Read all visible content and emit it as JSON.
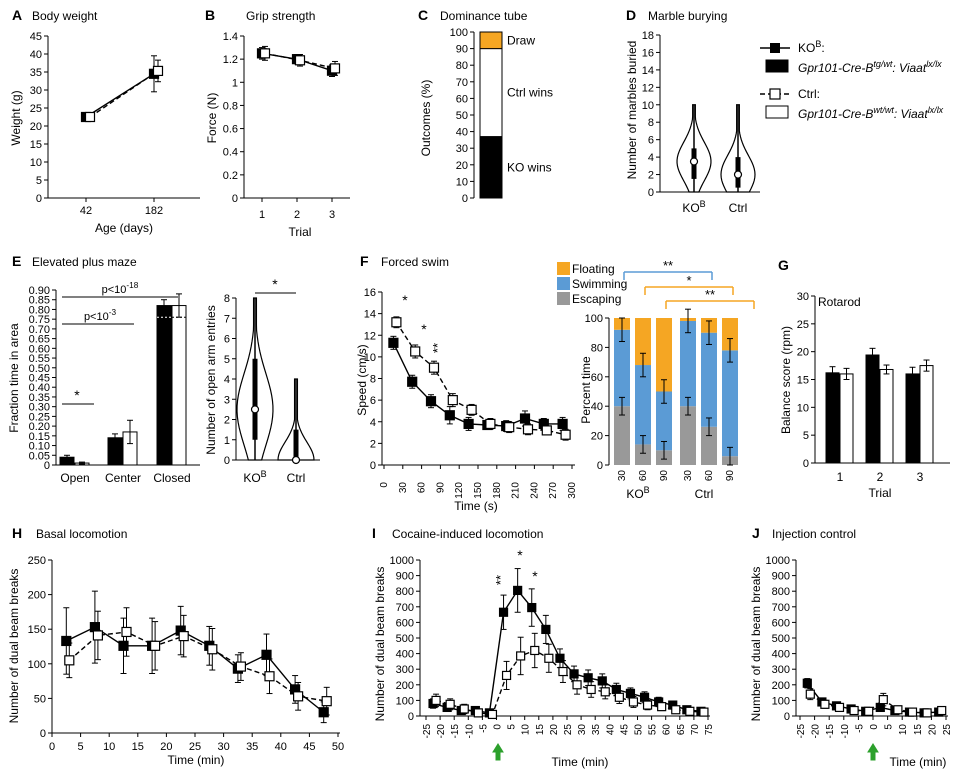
{
  "figure": {
    "legend": {
      "ko_label": "KO",
      "ko_sup": "B",
      "ko_suffix": ":",
      "ko_genotype": "Gpr101-Cre-B",
      "ko_geno_sup": "tg/wt",
      "ko_geno_mid": ": Viaat",
      "ko_geno_sup2": "lx/lx",
      "ctrl_label": "Ctrl:",
      "ctrl_genotype": "Gpr101-Cre-B",
      "ctrl_geno_sup": "wt/wt",
      "ctrl_geno_mid": ": Viaat",
      "ctrl_geno_sup2": "lx/lx"
    },
    "colors": {
      "ko": "#000000",
      "ctrl": "#ffffff",
      "floating": "#f5a623",
      "swimming": "#5b9bd5",
      "escaping": "#999999",
      "draw": "#f5a623",
      "arrow": "#2ca02c"
    }
  },
  "chart_data": [
    {
      "panel": "A",
      "type": "line",
      "title": "Body weight",
      "xlabel": "Age (days)",
      "ylabel": "Weight (g)",
      "x": [
        "42",
        "182"
      ],
      "ylim": [
        0,
        45
      ],
      "yticks": [
        0,
        5,
        10,
        15,
        20,
        25,
        30,
        35,
        40,
        45
      ],
      "series": [
        {
          "name": "KO",
          "values": [
            22.5,
            34.5
          ],
          "err": [
            1.0,
            5.0
          ]
        },
        {
          "name": "Ctrl",
          "values": [
            22.5,
            35.3
          ],
          "err": [
            1.0,
            3.0
          ]
        }
      ]
    },
    {
      "panel": "B",
      "type": "line",
      "title": "Grip strength",
      "xlabel": "Trial",
      "ylabel": "Force (N)",
      "x": [
        "1",
        "2",
        "3"
      ],
      "ylim": [
        0,
        1.4
      ],
      "yticks": [
        "0",
        "0.2",
        "0.4",
        "0.6",
        "0.8",
        "1",
        "1.2",
        "1.4"
      ],
      "series": [
        {
          "name": "KO",
          "values": [
            1.25,
            1.2,
            1.1
          ],
          "err": [
            0.05,
            0.04,
            0.05
          ]
        },
        {
          "name": "Ctrl",
          "values": [
            1.25,
            1.19,
            1.12
          ],
          "err": [
            0.06,
            0.05,
            0.06
          ]
        }
      ]
    },
    {
      "panel": "C",
      "type": "bar",
      "title": "Dominance tube",
      "ylabel": "Outcomes (%)",
      "ylim": [
        0,
        100
      ],
      "yticks": [
        0,
        10,
        20,
        30,
        40,
        50,
        60,
        70,
        80,
        90,
        100
      ],
      "segments": [
        {
          "name": "KO wins",
          "value": 37
        },
        {
          "name": "Ctrl wins",
          "value": 53
        },
        {
          "name": "Draw",
          "value": 10
        }
      ]
    },
    {
      "panel": "D",
      "type": "violin",
      "title": "Marble burying",
      "ylabel": "Number of marbles buried",
      "ylim": [
        0,
        18
      ],
      "yticks": [
        0,
        2,
        4,
        6,
        8,
        10,
        12,
        14,
        16,
        18
      ],
      "categories": [
        "KO",
        "Ctrl"
      ],
      "cat_sup": "B",
      "groups": [
        {
          "name": "KO",
          "median": 3.5,
          "q1": 1.5,
          "q3": 5,
          "min": 0,
          "max": 10
        },
        {
          "name": "Ctrl",
          "median": 2,
          "q1": 0.5,
          "q3": 4,
          "min": 0,
          "max": 10
        }
      ]
    },
    {
      "panel": "E",
      "type": "bar",
      "title": "Elevated plus maze",
      "ylabel": "Fraction time in area",
      "ylim": [
        0,
        0.9
      ],
      "yticks": [
        "0",
        "0.05",
        "0.10",
        "0.15",
        "0.20",
        "0.25",
        "0.30",
        "0.35",
        "0.40",
        "0.45",
        "0.50",
        "0.55",
        "0.60",
        "0.65",
        "0.70",
        "0.75",
        "0.80",
        "0.85",
        "0.90"
      ],
      "categories": [
        "Open",
        "Center",
        "Closed"
      ],
      "series": [
        {
          "name": "KO",
          "values": [
            0.04,
            0.14,
            0.82
          ],
          "err": [
            0.01,
            0.02,
            0.03
          ]
        },
        {
          "name": "Ctrl",
          "values": [
            0.01,
            0.17,
            0.82
          ],
          "err": [
            0.005,
            0.06,
            0.06
          ]
        }
      ],
      "annotations": {
        "star": "*",
        "p1": "p<10",
        "p1_exp": "-3",
        "p2": "p<10",
        "p2_exp": "-18"
      }
    },
    {
      "panel": "E2",
      "type": "violin",
      "ylabel": "Number of open arm entries",
      "ylim": [
        0,
        8
      ],
      "yticks": [
        0,
        1,
        2,
        3,
        4,
        5,
        6,
        7,
        8
      ],
      "categories": [
        "KO",
        "Ctrl"
      ],
      "cat_sup": "B",
      "sig": "*",
      "groups": [
        {
          "name": "KO",
          "median": 2.5,
          "q1": 1,
          "q3": 5,
          "min": 0,
          "max": 8
        },
        {
          "name": "Ctrl",
          "median": 0,
          "q1": 0,
          "q3": 1.5,
          "min": 0,
          "max": 4
        }
      ]
    },
    {
      "panel": "F",
      "type": "line",
      "title": "Forced swim",
      "xlabel": "Time (s)",
      "ylabel": "Speed (cm/s)",
      "x": [
        15,
        45,
        75,
        105,
        135,
        165,
        195,
        225,
        255,
        285
      ],
      "xticks": [
        0,
        30,
        60,
        90,
        120,
        150,
        180,
        210,
        240,
        270,
        300
      ],
      "ylim": [
        0,
        16
      ],
      "yticks": [
        0,
        2,
        4,
        6,
        8,
        10,
        12,
        14,
        16
      ],
      "series": [
        {
          "name": "KO",
          "values": [
            11.3,
            7.7,
            5.9,
            4.6,
            3.8,
            3.7,
            3.6,
            4.3,
            3.8,
            3.8
          ],
          "err": [
            0.6,
            0.6,
            0.6,
            0.8,
            0.6,
            0.4,
            0.5,
            0.7,
            0.5,
            0.6
          ]
        },
        {
          "name": "Ctrl",
          "values": [
            13.2,
            10.5,
            9.0,
            6.0,
            5.1,
            3.8,
            3.5,
            3.3,
            3.2,
            2.8
          ],
          "err": [
            0.5,
            0.6,
            0.6,
            0.6,
            0.5,
            0.5,
            0.5,
            0.5,
            0.4,
            0.5
          ]
        }
      ],
      "stars": [
        "*",
        "*",
        "**"
      ]
    },
    {
      "panel": "F2",
      "type": "bar",
      "ylabel": "Percent time",
      "ylim": [
        0,
        100
      ],
      "yticks": [
        0,
        20,
        40,
        60,
        80,
        100
      ],
      "legend": [
        "Floating",
        "Swimming",
        "Escaping"
      ],
      "groups": [
        {
          "name": "KO",
          "name_sup": "B",
          "ticks": [
            "30",
            "60",
            "90"
          ],
          "bars": [
            {
              "escaping": 40,
              "swimming": 52,
              "floating": 8
            },
            {
              "escaping": 14,
              "swimming": 54,
              "floating": 32
            },
            {
              "escaping": 10,
              "swimming": 40,
              "floating": 50
            }
          ]
        },
        {
          "name": "Ctrl",
          "ticks": [
            "30",
            "60",
            "90"
          ],
          "bars": [
            {
              "escaping": 40,
              "swimming": 58,
              "floating": 2
            },
            {
              "escaping": 26,
              "swimming": 64,
              "floating": 10
            },
            {
              "escaping": 6,
              "swimming": 72,
              "floating": 22
            }
          ]
        }
      ],
      "sig": [
        "**",
        "*",
        "**"
      ]
    },
    {
      "panel": "G",
      "type": "bar",
      "title": "Rotarod",
      "xlabel": "Trial",
      "ylabel": "Balance score (rpm)",
      "categories": [
        "1",
        "2",
        "3"
      ],
      "ylim": [
        0,
        30
      ],
      "yticks": [
        0,
        5,
        10,
        15,
        20,
        25,
        30
      ],
      "series": [
        {
          "name": "KO",
          "values": [
            16.2,
            19.4,
            16.0
          ],
          "err": [
            1.1,
            1.2,
            1.2
          ]
        },
        {
          "name": "Ctrl",
          "values": [
            16.0,
            16.8,
            17.5
          ],
          "err": [
            1.0,
            0.8,
            1.0
          ]
        }
      ]
    },
    {
      "panel": "H",
      "type": "line",
      "title": "Basal locomotion",
      "xlabel": "Time (min)",
      "ylabel": "Number of dual beam breaks",
      "x": [
        2.5,
        7.5,
        12.5,
        17.5,
        22.5,
        27.5,
        32.5,
        37.5,
        42.5,
        47.5
      ],
      "xticks": [
        0,
        5,
        10,
        15,
        20,
        25,
        30,
        35,
        40,
        45,
        50
      ],
      "ylim": [
        0,
        250
      ],
      "yticks": [
        0,
        50,
        100,
        150,
        200,
        250
      ],
      "series": [
        {
          "name": "KO",
          "values": [
            133,
            153,
            126,
            126,
            148,
            126,
            93,
            113,
            63,
            30
          ],
          "err": [
            48,
            52,
            40,
            40,
            35,
            28,
            20,
            30,
            20,
            15
          ]
        },
        {
          "name": "Ctrl",
          "values": [
            105,
            141,
            146,
            126,
            140,
            121,
            96,
            82,
            53,
            46
          ],
          "err": [
            25,
            35,
            35,
            35,
            30,
            30,
            20,
            25,
            20,
            20
          ]
        }
      ]
    },
    {
      "panel": "I",
      "type": "line",
      "title": "Cocaine-induced locomotion",
      "xlabel": "Time (min)",
      "ylabel": "Number of dual beam breaks",
      "x": [
        -22.5,
        -17.5,
        -12.5,
        -7.5,
        -2.5,
        2.5,
        7.5,
        12.5,
        17.5,
        22.5,
        27.5,
        32.5,
        37.5,
        42.5,
        47.5,
        52.5,
        57.5,
        62.5,
        67.5,
        72.5
      ],
      "xticks": [
        "-25",
        "-20",
        "-15",
        "-10",
        "-5",
        "0",
        "5",
        "10",
        "15",
        "20",
        "25",
        "30",
        "35",
        "40",
        "45",
        "50",
        "55",
        "60",
        "65",
        "70",
        "75"
      ],
      "ylim": [
        0,
        1000
      ],
      "yticks": [
        0,
        100,
        200,
        300,
        400,
        500,
        600,
        700,
        800,
        900,
        1000
      ],
      "series": [
        {
          "name": "KO",
          "values": [
            80,
            55,
            35,
            35,
            20,
            665,
            805,
            695,
            555,
            370,
            270,
            245,
            225,
            170,
            145,
            120,
            90,
            70,
            40,
            30
          ],
          "err": [
            30,
            25,
            20,
            20,
            15,
            110,
            140,
            120,
            90,
            60,
            50,
            50,
            45,
            40,
            35,
            35,
            30,
            25,
            20,
            15
          ]
        },
        {
          "name": "Ctrl",
          "values": [
            100,
            75,
            45,
            20,
            10,
            260,
            385,
            420,
            370,
            285,
            200,
            170,
            155,
            120,
            90,
            70,
            60,
            40,
            30,
            25
          ],
          "err": [
            40,
            35,
            30,
            25,
            20,
            90,
            120,
            110,
            90,
            70,
            60,
            50,
            45,
            40,
            35,
            30,
            25,
            20,
            20,
            15
          ]
        }
      ],
      "stars": [
        "**",
        "*",
        "*"
      ]
    },
    {
      "panel": "J",
      "type": "line",
      "title": "Injection control",
      "xlabel": "Time (min)",
      "ylabel": "Number of dual beam breaks",
      "x": [
        -22.5,
        -17.5,
        -12.5,
        -7.5,
        -2.5,
        2.5,
        7.5,
        12.5,
        17.5,
        22.5
      ],
      "xticks": [
        "-25",
        "-20",
        "-15",
        "-10",
        "-5",
        "0",
        "5",
        "10",
        "15",
        "20",
        "25"
      ],
      "ylim": [
        0,
        1000
      ],
      "yticks": [
        0,
        100,
        200,
        300,
        400,
        500,
        600,
        700,
        800,
        900,
        1000
      ],
      "series": [
        {
          "name": "KO",
          "values": [
            210,
            90,
            65,
            45,
            30,
            55,
            35,
            25,
            20,
            25
          ],
          "err": [
            30,
            20,
            15,
            15,
            10,
            20,
            15,
            10,
            10,
            10
          ]
        },
        {
          "name": "Ctrl",
          "values": [
            140,
            75,
            55,
            35,
            30,
            105,
            40,
            25,
            20,
            35
          ],
          "err": [
            35,
            25,
            20,
            15,
            15,
            40,
            20,
            15,
            15,
            15
          ]
        }
      ]
    }
  ]
}
